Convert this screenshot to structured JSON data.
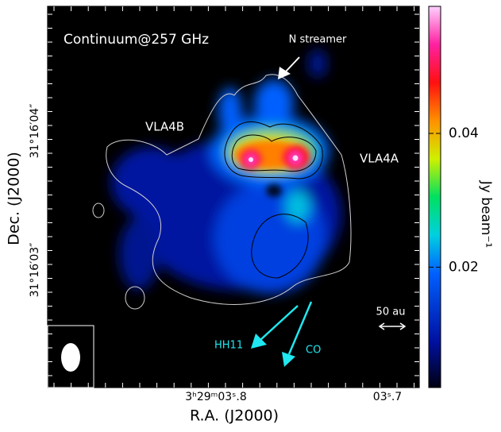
{
  "image": {
    "title": "Continuum@257 GHz",
    "annotations": {
      "n_streamer": "N streamer",
      "vla4b": "VLA4B",
      "vla4a": "VLA4A",
      "scale": "50 au",
      "hh11": "HH11",
      "co": "CO"
    },
    "x_axis": {
      "label": "R.A. (J2000)",
      "ticks": [
        "3ʰ29ᵐ03ˢ.8",
        "03ˢ.7"
      ]
    },
    "y_axis": {
      "label": "Dec. (J2000)",
      "ticks": [
        "31°16′04″",
        "31°16′03″"
      ]
    },
    "colorbar": {
      "label": "Jy beam⁻¹",
      "lim": [
        0.002,
        0.059
      ],
      "ticks": [
        0.02,
        0.04
      ]
    }
  }
}
